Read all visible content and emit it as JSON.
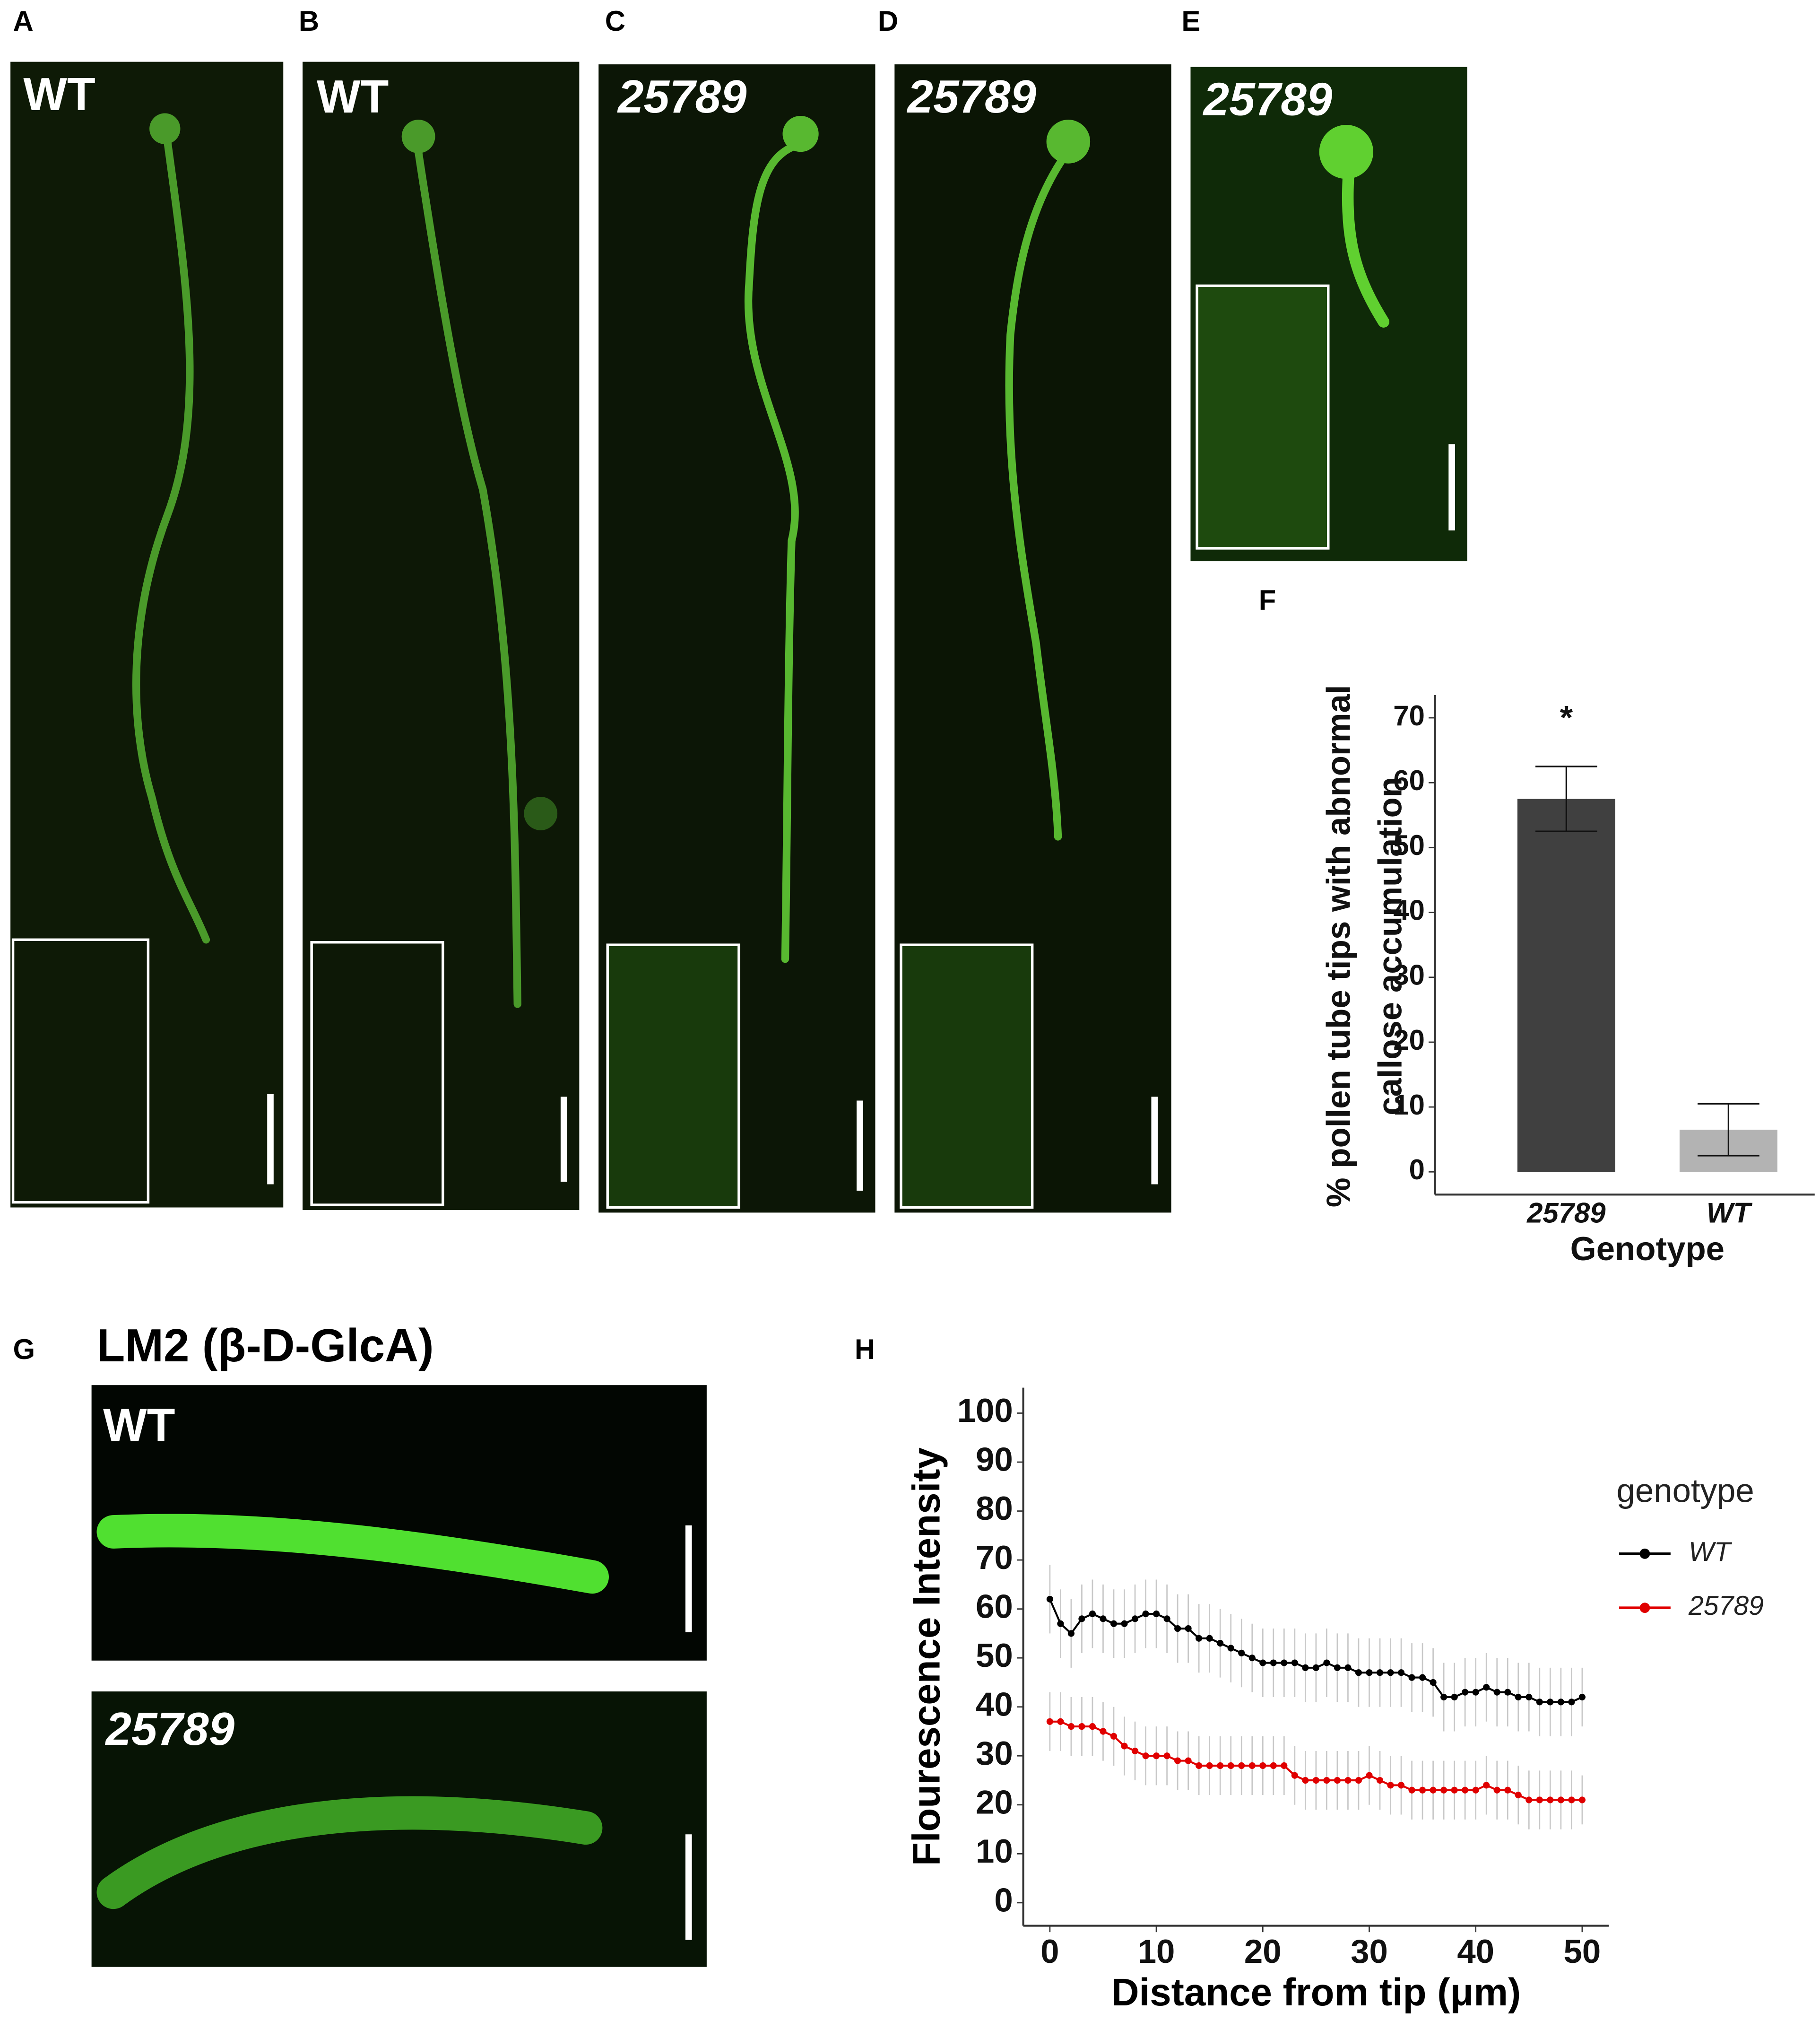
{
  "panels": [
    "A",
    "B",
    "C",
    "D",
    "E",
    "F",
    "G",
    "H"
  ],
  "image_labels": [
    "WT",
    "WT",
    "25789",
    "25789",
    "25789"
  ],
  "g_title": "LM2 (β-D-GlcA)",
  "g_labels": [
    "WT",
    "25789"
  ],
  "chart_data": [
    {
      "type": "bar",
      "annotation": "*",
      "categories": [
        "25789",
        "WT"
      ],
      "values": [
        57.5,
        6.5
      ],
      "errors": [
        5,
        4
      ],
      "colors": [
        "#404040",
        "#b3b3b3"
      ],
      "ylabel": [
        "% pollen tube tips with abnormal",
        "callose accumulation"
      ],
      "xlabel": "Genotype",
      "ylim": [
        -3.5,
        73.5
      ],
      "yticks": [
        0,
        10,
        20,
        30,
        40,
        50,
        60,
        70
      ]
    },
    {
      "type": "line",
      "x": [
        0,
        1,
        2,
        3,
        4,
        5,
        6,
        7,
        8,
        9,
        10,
        11,
        12,
        13,
        14,
        15,
        16,
        17,
        18,
        19,
        20,
        21,
        22,
        23,
        24,
        25,
        26,
        27,
        28,
        29,
        30,
        31,
        32,
        33,
        34,
        35,
        36,
        37,
        38,
        39,
        40,
        41,
        42,
        43,
        44,
        45,
        46,
        47,
        48,
        49,
        50
      ],
      "series": [
        {
          "name": "WT",
          "color": "#000000",
          "values": [
            62,
            57,
            55,
            58,
            59,
            58,
            57,
            57,
            58,
            59,
            59,
            58,
            56,
            56,
            54,
            54,
            53,
            52,
            51,
            50,
            49,
            49,
            49,
            49,
            48,
            48,
            49,
            48,
            48,
            47,
            47,
            47,
            47,
            47,
            46,
            46,
            45,
            42,
            42,
            43,
            43,
            44,
            43,
            43,
            42,
            42,
            41,
            41,
            41,
            41,
            42
          ],
          "errors": [
            7,
            7,
            7,
            7,
            7,
            7,
            7,
            7,
            7,
            7,
            7,
            7,
            7,
            7,
            7,
            7,
            7,
            7,
            7,
            7,
            7,
            7,
            7,
            7,
            7,
            7,
            7,
            7,
            7,
            7,
            7,
            7,
            7,
            7,
            7,
            7,
            7,
            7,
            7,
            7,
            7,
            7,
            7,
            7,
            7,
            7,
            7,
            7,
            7,
            7,
            6
          ]
        },
        {
          "name": "25789",
          "color": "#e00000",
          "values": [
            37,
            37,
            36,
            36,
            36,
            35,
            34,
            32,
            31,
            30,
            30,
            30,
            29,
            29,
            28,
            28,
            28,
            28,
            28,
            28,
            28,
            28,
            28,
            26,
            25,
            25,
            25,
            25,
            25,
            25,
            26,
            25,
            24,
            24,
            23,
            23,
            23,
            23,
            23,
            23,
            23,
            24,
            23,
            23,
            22,
            21,
            21,
            21,
            21,
            21,
            21
          ],
          "errors": [
            6,
            6,
            6,
            6,
            6,
            6,
            6,
            6,
            6,
            6,
            6,
            6,
            6,
            6,
            6,
            6,
            6,
            6,
            6,
            6,
            6,
            6,
            6,
            6,
            6,
            6,
            6,
            6,
            6,
            6,
            6,
            6,
            6,
            6,
            6,
            6,
            6,
            6,
            6,
            6,
            6,
            6,
            6,
            6,
            6,
            6,
            6,
            6,
            6,
            6,
            5
          ]
        }
      ],
      "xlabel": "Distance from tip (μm)",
      "ylabel": "Flourescence Intensity",
      "legend_title": "genotype",
      "xlim": [
        -2.5,
        52.5
      ],
      "ylim": [
        -4.7,
        105.2
      ],
      "xticks": [
        0,
        10,
        20,
        30,
        40,
        50
      ],
      "yticks": [
        0,
        10,
        20,
        30,
        40,
        50,
        60,
        70,
        80,
        90,
        100
      ]
    }
  ]
}
